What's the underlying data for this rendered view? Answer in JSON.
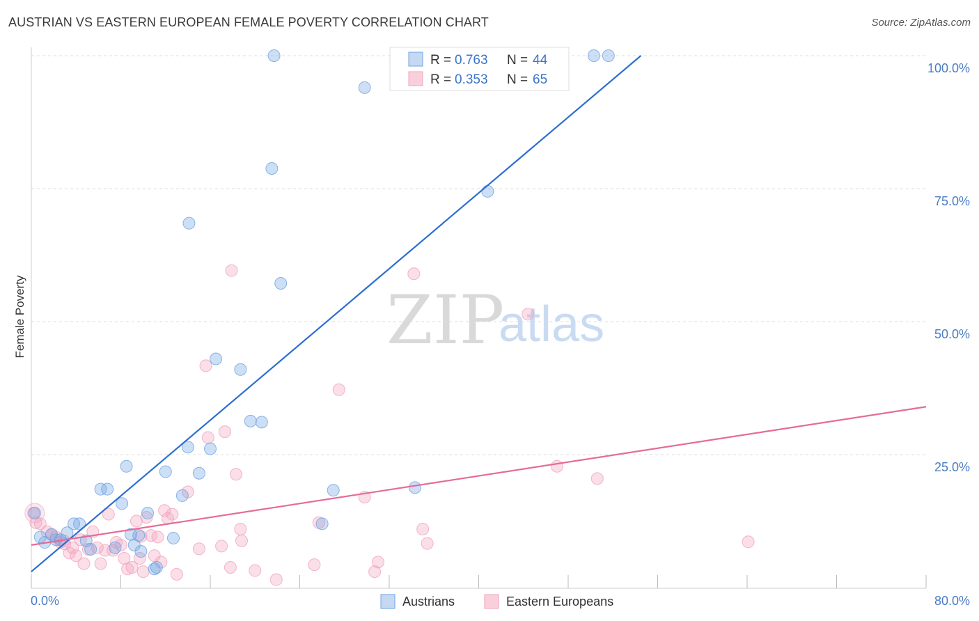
{
  "title": "AUSTRIAN VS EASTERN EUROPEAN FEMALE POVERTY CORRELATION CHART",
  "source": "Source: ZipAtlas.com",
  "watermark": {
    "zip": "ZIP",
    "atlas": "atlas"
  },
  "colors": {
    "austrians": "#6fa3e3",
    "austrians_line": "#2b6fcf",
    "eastern": "#f1a3bd",
    "eastern_line": "#e56b96",
    "axis_text": "#4a7cc4",
    "grid": "#dddddd"
  },
  "chart_data": {
    "type": "scatter",
    "title": "AUSTRIAN VS EASTERN EUROPEAN FEMALE POVERTY CORRELATION CHART",
    "xlabel": "",
    "ylabel": "Female Poverty",
    "xlim": [
      0,
      80
    ],
    "ylim": [
      0,
      100
    ],
    "x_tick_labels": [
      "0.0%",
      "80.0%"
    ],
    "y_ticks": [
      25,
      50,
      75,
      100
    ],
    "y_tick_labels": [
      "25.0%",
      "50.0%",
      "75.0%",
      "100.0%"
    ],
    "grid": true,
    "legend_top": [
      {
        "r_label": "R =",
        "r_value": "0.763",
        "n_label": "N =",
        "n_value": "44"
      },
      {
        "r_label": "R =",
        "r_value": "0.353",
        "n_label": "N =",
        "n_value": "65"
      }
    ],
    "legend_bottom": [
      "Austrians",
      "Eastern Europeans"
    ],
    "series": [
      {
        "name": "Austrians",
        "trend": [
          [
            0,
            3
          ],
          [
            54.5,
            100
          ]
        ],
        "points": [
          [
            0.3,
            14
          ],
          [
            0.8,
            9.5
          ],
          [
            1.2,
            8.5
          ],
          [
            1.8,
            10
          ],
          [
            2.2,
            9
          ],
          [
            2.6,
            9
          ],
          [
            3.2,
            10.3
          ],
          [
            3.8,
            12
          ],
          [
            4.3,
            12
          ],
          [
            4.9,
            8.8
          ],
          [
            5.3,
            7.2
          ],
          [
            6.2,
            18.5
          ],
          [
            6.8,
            18.5
          ],
          [
            7.5,
            7.5
          ],
          [
            8.1,
            15.8
          ],
          [
            8.5,
            22.8
          ],
          [
            8.9,
            10
          ],
          [
            9.2,
            8
          ],
          [
            9.6,
            9.8
          ],
          [
            9.8,
            6.8
          ],
          [
            10.4,
            14
          ],
          [
            11.0,
            3.5
          ],
          [
            12.0,
            21.8
          ],
          [
            12.7,
            9.3
          ],
          [
            13.5,
            17.3
          ],
          [
            14.0,
            26.4
          ],
          [
            14.1,
            68.5
          ],
          [
            15.0,
            21.5
          ],
          [
            16.0,
            26.1
          ],
          [
            16.5,
            43
          ],
          [
            18.7,
            41
          ],
          [
            19.6,
            31.3
          ],
          [
            20.6,
            31.1
          ],
          [
            21.5,
            78.8
          ],
          [
            21.7,
            100
          ],
          [
            22.3,
            57.2
          ],
          [
            26.0,
            12
          ],
          [
            27.0,
            18.3
          ],
          [
            29.8,
            94
          ],
          [
            34.3,
            18.8
          ],
          [
            40.8,
            74.5
          ],
          [
            50.3,
            100
          ],
          [
            51.6,
            100
          ],
          [
            11.2,
            3.8
          ]
        ]
      },
      {
        "name": "Eastern Europeans",
        "trend": [
          [
            0,
            8
          ],
          [
            80,
            34
          ]
        ],
        "points": [
          [
            0.2,
            14
          ],
          [
            0.4,
            12.2
          ],
          [
            0.8,
            12
          ],
          [
            1.4,
            10.5
          ],
          [
            1.8,
            10
          ],
          [
            2.2,
            9.5
          ],
          [
            2.6,
            8.5
          ],
          [
            3.0,
            8.2
          ],
          [
            3.4,
            6.5
          ],
          [
            3.7,
            7.5
          ],
          [
            4.0,
            6
          ],
          [
            4.4,
            9
          ],
          [
            4.7,
            4.5
          ],
          [
            5.1,
            7.2
          ],
          [
            5.5,
            10.5
          ],
          [
            5.9,
            7.5
          ],
          [
            6.2,
            4.5
          ],
          [
            6.6,
            7
          ],
          [
            6.9,
            13.8
          ],
          [
            7.3,
            7
          ],
          [
            7.6,
            8.5
          ],
          [
            8.0,
            8
          ],
          [
            8.3,
            5.5
          ],
          [
            8.6,
            3.5
          ],
          [
            9.0,
            3.8
          ],
          [
            9.4,
            12.5
          ],
          [
            9.7,
            5.5
          ],
          [
            10.0,
            3
          ],
          [
            10.3,
            13.2
          ],
          [
            10.7,
            9.8
          ],
          [
            11.0,
            6
          ],
          [
            11.3,
            9.5
          ],
          [
            11.6,
            4.8
          ],
          [
            11.9,
            14.5
          ],
          [
            12.2,
            13
          ],
          [
            12.6,
            13.8
          ],
          [
            13.0,
            2.5
          ],
          [
            14.0,
            18
          ],
          [
            15.0,
            7.3
          ],
          [
            15.6,
            41.7
          ],
          [
            15.8,
            28.2
          ],
          [
            17.0,
            7.8
          ],
          [
            17.3,
            29.3
          ],
          [
            17.8,
            3.8
          ],
          [
            17.9,
            59.6
          ],
          [
            18.3,
            21.3
          ],
          [
            18.7,
            11
          ],
          [
            18.8,
            8.8
          ],
          [
            20.0,
            3.2
          ],
          [
            21.9,
            1.5
          ],
          [
            25.3,
            4.3
          ],
          [
            25.7,
            12.2
          ],
          [
            27.5,
            37.2
          ],
          [
            29.8,
            17
          ],
          [
            30.7,
            3
          ],
          [
            31.0,
            4.8
          ],
          [
            34.2,
            59
          ],
          [
            35.0,
            11
          ],
          [
            35.4,
            8.3
          ],
          [
            44.4,
            51.4
          ],
          [
            47.0,
            22.8
          ],
          [
            50.6,
            20.5
          ],
          [
            64.1,
            8.6
          ],
          [
            2.9,
            8.8
          ],
          [
            9.8,
            9.6
          ]
        ]
      }
    ]
  }
}
